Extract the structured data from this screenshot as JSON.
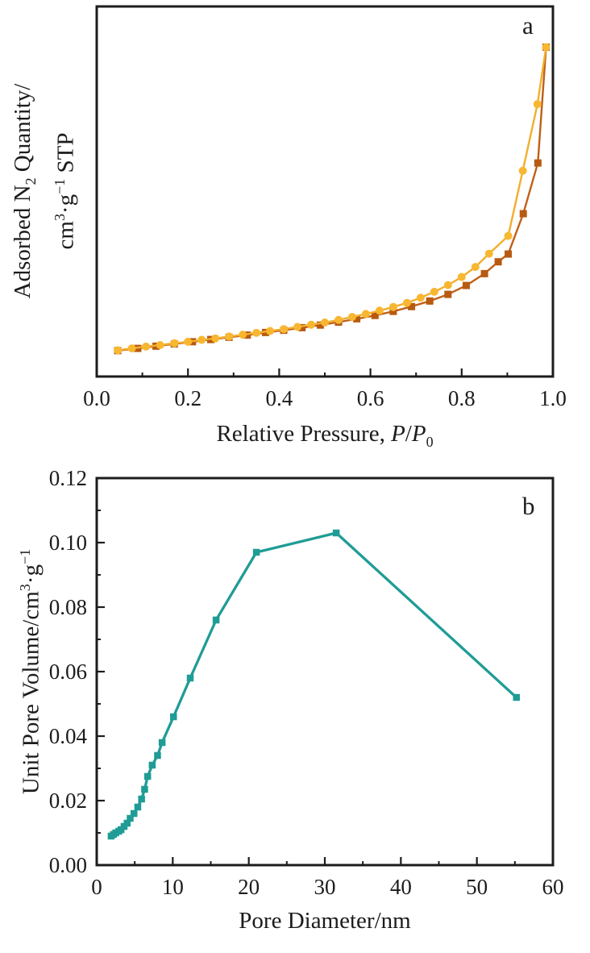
{
  "figure": {
    "background": "#ffffff",
    "axis_color": "#1c1c1c"
  },
  "panel_a": {
    "letter": "a",
    "x_title_parts": [
      {
        "t": "n",
        "v": "Relative Pressure, "
      },
      {
        "t": "i",
        "v": "P"
      },
      {
        "t": "n",
        "v": "/"
      },
      {
        "t": "i",
        "v": "P"
      },
      {
        "t": "sub",
        "v": "0"
      }
    ],
    "y_title_lines": [
      [
        {
          "t": "n",
          "v": "Adsorbed N"
        },
        {
          "t": "sub",
          "v": "2"
        },
        {
          "t": "n",
          "v": " Quantity/"
        }
      ],
      [
        {
          "t": "n",
          "v": "cm"
        },
        {
          "t": "sup",
          "v": "3"
        },
        {
          "t": "n",
          "v": "·g"
        },
        {
          "t": "sup",
          "v": "−1"
        },
        {
          "t": "n",
          "v": " STP"
        }
      ]
    ]
  },
  "panel_b": {
    "letter": "b",
    "x_title": "Pore Diameter/nm",
    "y_title_parts": [
      {
        "t": "n",
        "v": "Unit Pore Volume/cm"
      },
      {
        "t": "sup",
        "v": "3"
      },
      {
        "t": "n",
        "v": "·g"
      },
      {
        "t": "sup",
        "v": "−1"
      }
    ]
  },
  "chart_data": [
    {
      "type": "line",
      "panel": "a",
      "title": "",
      "xlabel": "Relative Pressure, P/P0",
      "ylabel": "Adsorbed N2 Quantity/cm3·g−1 STP",
      "xlim": [
        0,
        1
      ],
      "ylim": [
        0,
        100
      ],
      "ylim_note": "y axis has no tick marks or labels in the original; values are arbitrary units 0–100 of plot height",
      "grid": false,
      "xticks": [
        0.0,
        0.2,
        0.4,
        0.6,
        0.8,
        1.0
      ],
      "xtick_labels": [
        "0.0",
        "0.2",
        "0.4",
        "0.6",
        "0.8",
        "1.0"
      ],
      "series": [
        {
          "name": "adsorption-branch",
          "marker": "square",
          "color": "#b85a10",
          "line_color": "#c06018",
          "x": [
            0.046,
            0.09,
            0.13,
            0.17,
            0.21,
            0.25,
            0.29,
            0.33,
            0.37,
            0.41,
            0.45,
            0.49,
            0.53,
            0.57,
            0.61,
            0.65,
            0.69,
            0.73,
            0.77,
            0.81,
            0.85,
            0.88,
            0.902,
            0.935,
            0.967,
            0.985
          ],
          "y": [
            7.0,
            7.6,
            8.2,
            8.8,
            9.4,
            10.0,
            10.6,
            11.2,
            11.9,
            12.5,
            13.2,
            13.9,
            14.7,
            15.6,
            16.5,
            17.6,
            18.9,
            20.4,
            22.2,
            24.6,
            27.8,
            31.0,
            33.1,
            44.0,
            57.7,
            89.0
          ]
        },
        {
          "name": "desorption-branch",
          "marker": "circle",
          "color": "#f8b731",
          "line_color": "#f3ae2c",
          "x": [
            0.046,
            0.077,
            0.108,
            0.139,
            0.17,
            0.2,
            0.23,
            0.26,
            0.29,
            0.32,
            0.35,
            0.38,
            0.41,
            0.44,
            0.47,
            0.5,
            0.53,
            0.56,
            0.59,
            0.62,
            0.65,
            0.68,
            0.71,
            0.74,
            0.77,
            0.8,
            0.83,
            0.86,
            0.902,
            0.934,
            0.966,
            0.985
          ],
          "y": [
            7.1,
            7.6,
            8.1,
            8.5,
            9.0,
            9.4,
            9.9,
            10.3,
            10.8,
            11.3,
            11.8,
            12.3,
            12.8,
            13.4,
            14.0,
            14.6,
            15.3,
            16.1,
            16.9,
            17.8,
            18.8,
            19.9,
            21.3,
            22.9,
            24.7,
            26.9,
            29.6,
            33.2,
            38.0,
            55.6,
            73.6,
            89.0
          ]
        }
      ]
    },
    {
      "type": "line",
      "panel": "b",
      "title": "",
      "xlabel": "Pore Diameter/nm",
      "ylabel": "Unit Pore Volume/cm3·g−1",
      "xlim": [
        0,
        60
      ],
      "ylim": [
        0,
        0.12
      ],
      "grid": false,
      "xticks": [
        0,
        10,
        20,
        30,
        40,
        50,
        60
      ],
      "xtick_labels": [
        "0",
        "10",
        "20",
        "30",
        "40",
        "50",
        "60"
      ],
      "yticks": [
        0,
        0.02,
        0.04,
        0.06,
        0.08,
        0.1,
        0.12
      ],
      "ytick_labels": [
        "0.00",
        "0.02",
        "0.04",
        "0.06",
        "0.08",
        "0.10",
        "0.12"
      ],
      "series": [
        {
          "name": "pore-volume-distribution",
          "marker": "square",
          "color": "#1f9c96",
          "line_color": "#1f9c96",
          "x": [
            1.9,
            2.2,
            2.5,
            2.9,
            3.2,
            3.6,
            4.0,
            4.4,
            4.9,
            5.4,
            5.9,
            6.3,
            6.7,
            7.3,
            8.0,
            8.6,
            10.1,
            12.3,
            15.7,
            21.0,
            31.5,
            55.2
          ],
          "y": [
            0.009,
            0.0095,
            0.01,
            0.0105,
            0.011,
            0.012,
            0.013,
            0.0145,
            0.016,
            0.018,
            0.0205,
            0.0235,
            0.0275,
            0.031,
            0.034,
            0.038,
            0.046,
            0.058,
            0.076,
            0.097,
            0.103,
            0.052
          ]
        }
      ]
    }
  ]
}
